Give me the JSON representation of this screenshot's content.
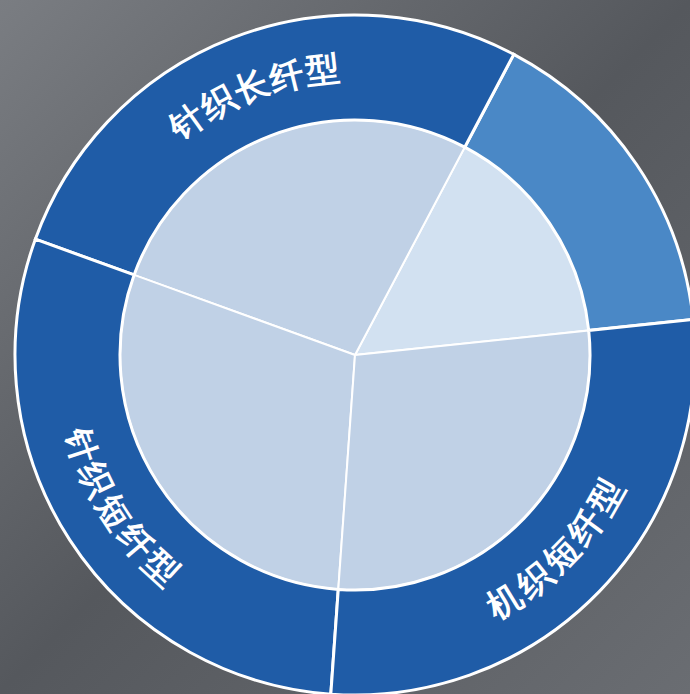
{
  "chart_data": {
    "type": "pie",
    "categories": [
      null,
      "针织长纤型",
      "针织短纤型",
      "机织短纤型"
    ],
    "values": [
      15.6,
      27.2,
      29.4,
      27.8
    ],
    "colors": [
      "#4a88c6",
      "#1f5ca7",
      "#1f5ca7",
      "#1f5ca7"
    ]
  }
}
